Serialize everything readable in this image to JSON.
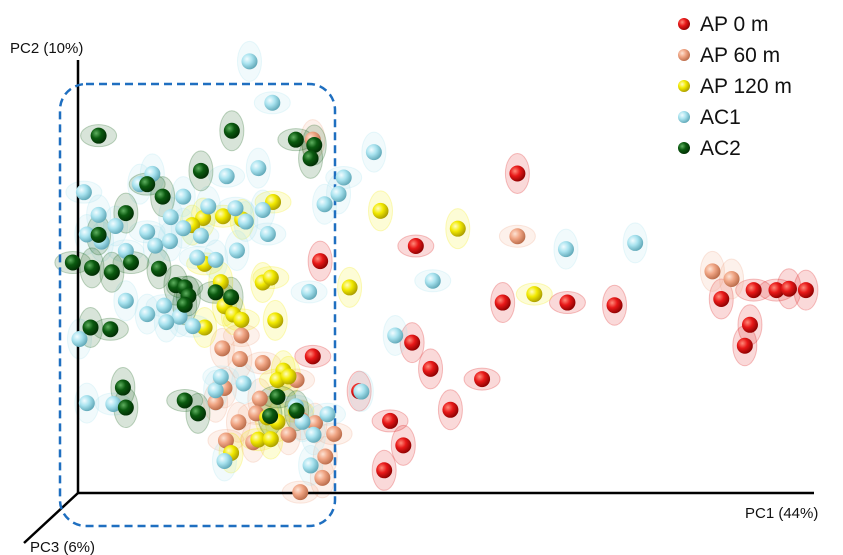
{
  "chart_data": {
    "type": "scatter",
    "title": "",
    "xlabel": "PC1 (44%)",
    "ylabel": "PC2 (10%)",
    "zlabel": "PC3 (6%)",
    "xlim": [
      0,
      100
    ],
    "ylim": [
      0,
      100
    ],
    "grid": false,
    "legend_position": "top-right",
    "legend": [
      {
        "key": "ap0",
        "label": "AP 0 m",
        "color": "#dd1111"
      },
      {
        "key": "ap60",
        "label": "AP 60 m",
        "color": "#f0a584"
      },
      {
        "key": "ap120",
        "label": "AP 120 m",
        "color": "#f2ea00"
      },
      {
        "key": "ac1",
        "label": "AC1",
        "color": "#a9e3ef"
      },
      {
        "key": "ac2",
        "label": "AC2",
        "color": "#0b5a10"
      }
    ],
    "series": [
      {
        "key": "ap0",
        "points": [
          [
            59.7,
            71.8
          ],
          [
            45.9,
            55.5
          ],
          [
            32.9,
            52.1
          ],
          [
            57.7,
            42.8
          ],
          [
            66.5,
            42.8
          ],
          [
            72.9,
            42.2
          ],
          [
            87.4,
            43.6
          ],
          [
            91.8,
            45.6
          ],
          [
            91.3,
            37.8
          ],
          [
            90.6,
            33.1
          ],
          [
            94.9,
            45.6
          ],
          [
            96.6,
            45.9
          ],
          [
            98.9,
            45.6
          ],
          [
            31.9,
            30.7
          ],
          [
            45.4,
            33.8
          ],
          [
            47.9,
            27.9
          ],
          [
            54.9,
            25.6
          ],
          [
            38.2,
            22.9
          ],
          [
            50.6,
            18.7
          ],
          [
            42.4,
            16.2
          ],
          [
            44.2,
            10.7
          ],
          [
            41.6,
            5.1
          ]
        ]
      },
      {
        "key": "ap60",
        "points": [
          [
            31.9,
            79.4
          ],
          [
            59.7,
            57.7
          ],
          [
            86.2,
            49.8
          ],
          [
            88.8,
            48.1
          ],
          [
            22.2,
            35.4
          ],
          [
            22.0,
            30.1
          ],
          [
            19.6,
            32.5
          ],
          [
            25.1,
            29.2
          ],
          [
            19.9,
            23.6
          ],
          [
            24.7,
            21.2
          ],
          [
            29.7,
            25.4
          ],
          [
            18.7,
            20.4
          ],
          [
            21.8,
            15.9
          ],
          [
            24.2,
            17.9
          ],
          [
            32.2,
            15.7
          ],
          [
            30.4,
            16.4
          ],
          [
            20.1,
            11.8
          ],
          [
            23.8,
            11.4
          ],
          [
            28.6,
            13.1
          ],
          [
            34.8,
            13.3
          ],
          [
            33.6,
            8.2
          ],
          [
            33.2,
            3.4
          ],
          [
            30.2,
            0.2
          ]
        ]
      },
      {
        "key": "ap120",
        "points": [
          [
            17.0,
            61.8
          ],
          [
            19.7,
            62.2
          ],
          [
            22.3,
            61.5
          ],
          [
            15.5,
            60.2
          ],
          [
            26.5,
            65.4
          ],
          [
            41.1,
            63.4
          ],
          [
            51.6,
            59.4
          ],
          [
            17.2,
            51.5
          ],
          [
            19.4,
            47.4
          ],
          [
            25.1,
            47.3
          ],
          [
            26.2,
            48.4
          ],
          [
            26.8,
            38.8
          ],
          [
            36.9,
            46.2
          ],
          [
            62.0,
            44.7
          ],
          [
            19.9,
            42.0
          ],
          [
            21.1,
            40.1
          ],
          [
            22.2,
            38.9
          ],
          [
            17.2,
            37.2
          ],
          [
            27.9,
            27.5
          ],
          [
            27.1,
            25.4
          ],
          [
            28.6,
            26.2
          ],
          [
            25.7,
            17.0
          ],
          [
            24.5,
            12.0
          ],
          [
            26.2,
            12.1
          ],
          [
            27.1,
            16.0
          ],
          [
            29.6,
            18.4
          ],
          [
            20.8,
            9.0
          ]
        ]
      },
      {
        "key": "ac1",
        "points": [
          [
            23.3,
            97.0
          ],
          [
            26.4,
            87.7
          ],
          [
            40.2,
            76.6
          ],
          [
            10.1,
            71.7
          ],
          [
            20.2,
            71.2
          ],
          [
            24.5,
            73.0
          ],
          [
            8.4,
            69.4
          ],
          [
            0.8,
            67.6
          ],
          [
            14.3,
            66.6
          ],
          [
            17.7,
            64.4
          ],
          [
            21.4,
            64.0
          ],
          [
            2.8,
            62.5
          ],
          [
            5.1,
            60.0
          ],
          [
            9.4,
            58.7
          ],
          [
            12.6,
            62.0
          ],
          [
            14.3,
            59.5
          ],
          [
            16.7,
            57.8
          ],
          [
            22.8,
            61.0
          ],
          [
            25.1,
            63.6
          ],
          [
            25.8,
            58.2
          ],
          [
            35.4,
            67.2
          ],
          [
            33.5,
            64.9
          ],
          [
            36.1,
            70.9
          ],
          [
            1.2,
            58.1
          ],
          [
            3.2,
            56.5
          ],
          [
            6.5,
            54.4
          ],
          [
            10.5,
            55.6
          ],
          [
            12.5,
            56.6
          ],
          [
            16.2,
            52.9
          ],
          [
            18.7,
            52.4
          ],
          [
            21.6,
            54.5
          ],
          [
            48.2,
            47.7
          ],
          [
            66.3,
            54.8
          ],
          [
            75.7,
            56.2
          ],
          [
            31.4,
            45.2
          ],
          [
            6.5,
            43.2
          ],
          [
            9.4,
            40.2
          ],
          [
            11.7,
            42.1
          ],
          [
            13.8,
            39.6
          ],
          [
            12.0,
            38.4
          ],
          [
            15.6,
            37.5
          ],
          [
            0.2,
            34.6
          ],
          [
            43.1,
            35.4
          ],
          [
            29.6,
            19.5
          ],
          [
            30.5,
            16.0
          ],
          [
            38.5,
            22.8
          ],
          [
            33.9,
            17.7
          ],
          [
            32.0,
            13.1
          ],
          [
            18.7,
            23.1
          ],
          [
            19.4,
            26.1
          ],
          [
            22.5,
            24.6
          ],
          [
            1.2,
            20.2
          ],
          [
            4.8,
            20.0
          ],
          [
            19.9,
            7.2
          ],
          [
            31.6,
            6.2
          ]
        ]
      },
      {
        "key": "ac2",
        "points": [
          [
            20.9,
            81.4
          ],
          [
            29.6,
            79.4
          ],
          [
            32.1,
            78.2
          ],
          [
            31.6,
            75.2
          ],
          [
            2.8,
            80.3
          ],
          [
            16.7,
            72.4
          ],
          [
            11.5,
            66.6
          ],
          [
            9.4,
            69.4
          ],
          [
            6.5,
            62.9
          ],
          [
            2.8,
            58.0
          ],
          [
            -0.7,
            51.8
          ],
          [
            1.9,
            50.6
          ],
          [
            4.6,
            49.6
          ],
          [
            7.2,
            51.8
          ],
          [
            11.0,
            50.4
          ],
          [
            13.3,
            46.7
          ],
          [
            14.5,
            46.2
          ],
          [
            15.0,
            44.3
          ],
          [
            14.5,
            42.3
          ],
          [
            18.7,
            45.1
          ],
          [
            20.8,
            44.0
          ],
          [
            1.7,
            37.2
          ],
          [
            4.4,
            36.8
          ],
          [
            6.1,
            23.7
          ],
          [
            6.5,
            19.2
          ],
          [
            14.5,
            20.8
          ],
          [
            16.3,
            17.9
          ],
          [
            26.1,
            17.3
          ],
          [
            27.1,
            21.6
          ],
          [
            29.7,
            18.5
          ]
        ]
      }
    ]
  }
}
